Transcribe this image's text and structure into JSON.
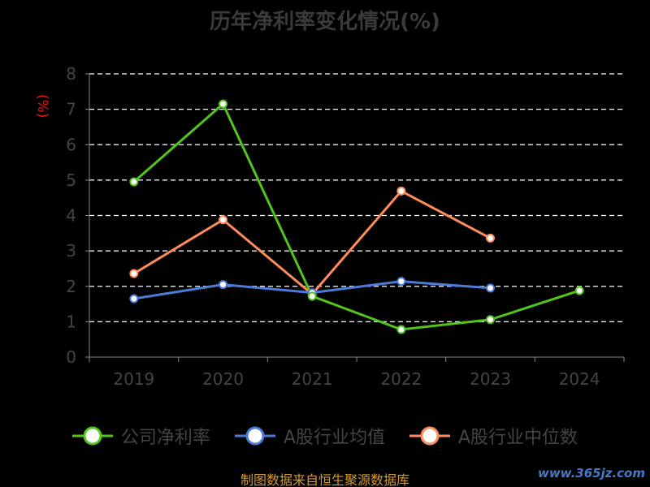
{
  "title": "历年净利率变化情况(%)",
  "ylabel": "(%)",
  "source": "制图数据来自恒生聚源数据库",
  "watermark": "www.365jz.com",
  "colors": {
    "series1": "#52c41a",
    "series2": "#4a7bd8",
    "series3": "#ff8c5a",
    "axis": "#888888",
    "grid": "#ffffff",
    "tick_text": "#444444"
  },
  "chart_data": {
    "type": "line",
    "title": "历年净利率变化情况(%)",
    "ylabel": "(%)",
    "xlabel": "",
    "categories": [
      "2019",
      "2020",
      "2021",
      "2022",
      "2023",
      "2024"
    ],
    "ylim": [
      0,
      8
    ],
    "yticks": [
      "0",
      "1",
      "2",
      "3",
      "4",
      "5",
      "6",
      "7",
      "8"
    ],
    "grid": true,
    "legend_position": "bottom",
    "series": [
      {
        "name": "公司净利率",
        "values": [
          4.95,
          7.15,
          1.72,
          0.78,
          1.06,
          1.88
        ]
      },
      {
        "name": "A股行业均值",
        "values": [
          1.65,
          2.05,
          1.82,
          2.14,
          1.95,
          null
        ]
      },
      {
        "name": "A股行业中位数",
        "values": [
          2.36,
          3.88,
          1.78,
          4.69,
          3.36,
          null
        ]
      }
    ]
  }
}
